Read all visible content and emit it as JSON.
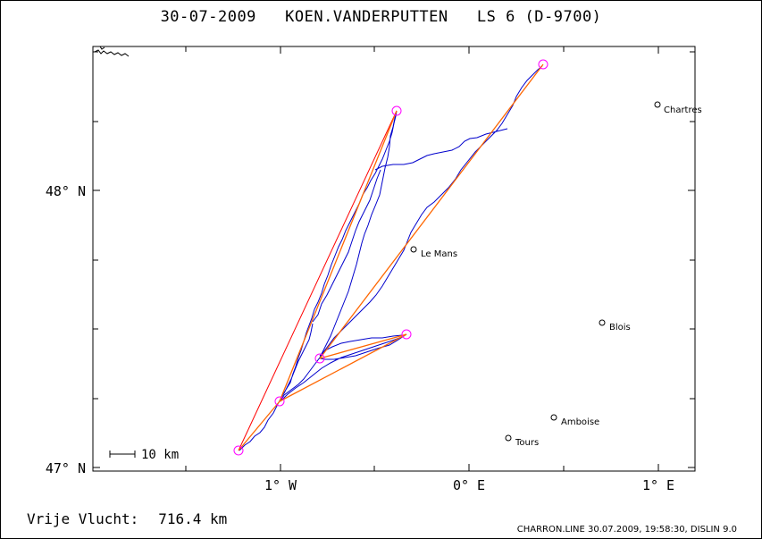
{
  "header": {
    "date": "30-07-2009",
    "pilot": "KOEN.VANDERPUTTEN",
    "glider": "LS 6 (D-9700)"
  },
  "distance": {
    "label": "Vrije Vlucht:",
    "value": "716.4 km"
  },
  "footer": "CHARRON.LINE 30.07.2009, 19:58:30, DISLIN 9.0",
  "axes": {
    "lat_labels": [
      "48° N",
      "47° N"
    ],
    "lon_labels": [
      "1° W",
      "0° E",
      "1° E"
    ]
  },
  "scale_bar": {
    "label": "10 km"
  },
  "cities": [
    {
      "name": "Chartres"
    },
    {
      "name": "Le Mans"
    },
    {
      "name": "Blois"
    },
    {
      "name": "Amboise"
    },
    {
      "name": "Tours"
    }
  ],
  "colors": {
    "track": "#0000cc",
    "task_line": "#ff6600",
    "outer_line": "#ff0000",
    "turnpoint": "#ff00ff"
  }
}
